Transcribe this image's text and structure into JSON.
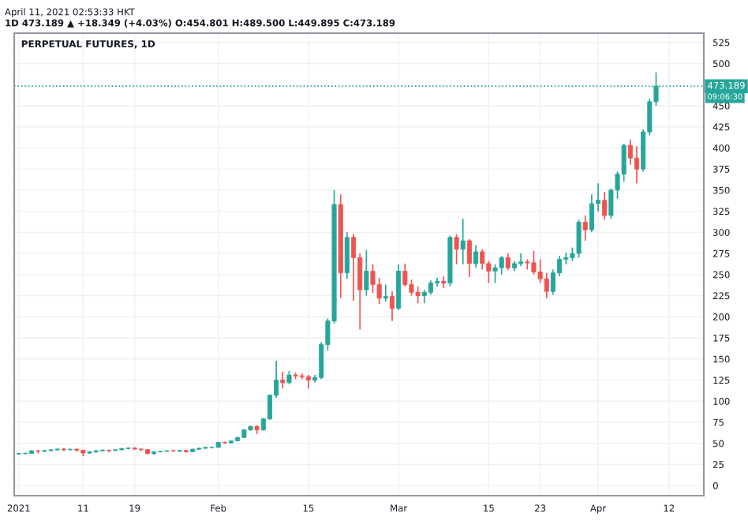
{
  "chart_data": {
    "type": "candlestick",
    "title": "PERPETUAL FUTURES, 1D",
    "annotations": [
      "April 11, 2021 02:53:33 HKT",
      "1D 473.189 ▲ +18.349 (+4.03%) O:454.801 H:489.500 L:449.895 C:473.189",
      "09:06:30"
    ],
    "x": [
      "2021-01-01",
      "2021-01-02",
      "2021-01-03",
      "2021-01-04",
      "2021-01-05",
      "2021-01-06",
      "2021-01-07",
      "2021-01-08",
      "2021-01-09",
      "2021-01-10",
      "2021-01-11",
      "2021-01-12",
      "2021-01-13",
      "2021-01-14",
      "2021-01-15",
      "2021-01-16",
      "2021-01-17",
      "2021-01-18",
      "2021-01-19",
      "2021-01-20",
      "2021-01-21",
      "2021-01-22",
      "2021-01-23",
      "2021-01-24",
      "2021-01-25",
      "2021-01-26",
      "2021-01-27",
      "2021-01-28",
      "2021-01-29",
      "2021-01-30",
      "2021-01-31",
      "2021-02-01",
      "2021-02-02",
      "2021-02-03",
      "2021-02-04",
      "2021-02-05",
      "2021-02-06",
      "2021-02-07",
      "2021-02-08",
      "2021-02-09",
      "2021-02-10",
      "2021-02-11",
      "2021-02-12",
      "2021-02-13",
      "2021-02-14",
      "2021-02-15",
      "2021-02-16",
      "2021-02-17",
      "2021-02-18",
      "2021-02-19",
      "2021-02-20",
      "2021-02-21",
      "2021-02-22",
      "2021-02-23",
      "2021-02-24",
      "2021-02-25",
      "2021-02-26",
      "2021-02-27",
      "2021-02-28",
      "2021-03-01",
      "2021-03-02",
      "2021-03-03",
      "2021-03-04",
      "2021-03-05",
      "2021-03-06",
      "2021-03-07",
      "2021-03-08",
      "2021-03-09",
      "2021-03-10",
      "2021-03-11",
      "2021-03-12",
      "2021-03-13",
      "2021-03-14",
      "2021-03-15",
      "2021-03-16",
      "2021-03-17",
      "2021-03-18",
      "2021-03-19",
      "2021-03-20",
      "2021-03-21",
      "2021-03-22",
      "2021-03-23",
      "2021-03-24",
      "2021-03-25",
      "2021-03-26",
      "2021-03-27",
      "2021-03-28",
      "2021-03-29",
      "2021-03-30",
      "2021-03-31",
      "2021-04-01",
      "2021-04-02",
      "2021-04-03",
      "2021-04-04",
      "2021-04-05",
      "2021-04-06",
      "2021-04-07",
      "2021-04-08",
      "2021-04-09",
      "2021-04-10"
    ],
    "ohlc": [
      [
        37.4,
        38.5,
        36.8,
        37.9
      ],
      [
        37.9,
        38.8,
        36.9,
        38.2
      ],
      [
        38.2,
        41.9,
        37.8,
        41.2
      ],
      [
        41.2,
        42.2,
        38.0,
        40.8
      ],
      [
        40.8,
        42.0,
        39.6,
        41.5
      ],
      [
        41.5,
        43.0,
        40.5,
        42.3
      ],
      [
        42.3,
        44.0,
        41.5,
        43.2
      ],
      [
        43.2,
        44.5,
        40.8,
        42.4
      ],
      [
        42.4,
        43.6,
        41.8,
        43.1
      ],
      [
        43.1,
        43.8,
        40.2,
        41.9
      ],
      [
        41.9,
        42.2,
        34.8,
        38.5
      ],
      [
        38.5,
        40.8,
        37.5,
        40.0
      ],
      [
        40.0,
        41.8,
        38.8,
        41.2
      ],
      [
        41.2,
        42.6,
        40.6,
        42.0
      ],
      [
        42.0,
        42.5,
        39.5,
        41.6
      ],
      [
        41.6,
        43.0,
        41.0,
        42.4
      ],
      [
        42.4,
        44.5,
        41.8,
        43.9
      ],
      [
        43.9,
        45.2,
        43.0,
        44.5
      ],
      [
        44.5,
        45.6,
        42.6,
        43.2
      ],
      [
        43.2,
        43.8,
        40.6,
        42.6
      ],
      [
        42.6,
        42.9,
        36.8,
        38.0
      ],
      [
        38.0,
        40.6,
        36.5,
        40.0
      ],
      [
        40.0,
        41.0,
        39.2,
        40.6
      ],
      [
        40.6,
        41.8,
        40.2,
        41.3
      ],
      [
        41.3,
        42.4,
        40.4,
        41.0
      ],
      [
        41.0,
        42.0,
        39.8,
        41.6
      ],
      [
        41.6,
        41.9,
        39.0,
        40.1
      ],
      [
        40.1,
        43.6,
        39.6,
        43.1
      ],
      [
        43.1,
        45.0,
        42.4,
        44.2
      ],
      [
        44.2,
        45.8,
        43.6,
        45.2
      ],
      [
        45.2,
        45.9,
        44.0,
        45.3
      ],
      [
        45.3,
        51.8,
        45.0,
        51.1
      ],
      [
        51.1,
        52.0,
        49.6,
        50.6
      ],
      [
        50.6,
        53.4,
        50.2,
        53.0
      ],
      [
        53.0,
        57.8,
        52.4,
        57.0
      ],
      [
        57.0,
        66.8,
        56.4,
        66.0
      ],
      [
        66.0,
        71.0,
        64.8,
        70.0
      ],
      [
        70.0,
        71.5,
        61.0,
        66.0
      ],
      [
        66.0,
        80.0,
        65.0,
        79.0
      ],
      [
        79.0,
        108,
        78.0,
        107
      ],
      [
        107,
        148,
        104,
        125
      ],
      [
        125,
        135,
        115,
        122
      ],
      [
        122,
        136,
        120,
        131
      ],
      [
        131,
        134,
        126,
        130
      ],
      [
        130,
        133,
        126,
        129
      ],
      [
        129,
        131,
        115,
        125
      ],
      [
        125,
        131,
        122,
        128
      ],
      [
        128,
        170,
        126,
        167
      ],
      [
        167,
        198,
        160,
        195
      ],
      [
        195,
        350,
        192,
        333
      ],
      [
        333,
        345,
        222,
        252
      ],
      [
        252,
        300,
        245,
        294
      ],
      [
        294,
        298,
        219,
        270
      ],
      [
        270,
        275,
        185,
        232
      ],
      [
        232,
        279,
        225,
        254
      ],
      [
        254,
        262,
        228,
        238
      ],
      [
        238,
        246,
        215,
        222
      ],
      [
        222,
        238,
        218,
        224
      ],
      [
        224,
        230,
        195,
        210
      ],
      [
        210,
        262,
        208,
        254
      ],
      [
        254,
        263,
        236,
        238
      ],
      [
        238,
        244,
        225,
        229
      ],
      [
        229,
        236,
        216,
        225
      ],
      [
        225,
        232,
        216,
        229
      ],
      [
        229,
        243,
        226,
        240
      ],
      [
        240,
        246,
        236,
        242
      ],
      [
        242,
        248,
        234,
        240
      ],
      [
        240,
        296,
        236,
        294
      ],
      [
        294,
        298,
        262,
        280
      ],
      [
        280,
        316,
        262,
        290
      ],
      [
        290,
        292,
        247,
        263
      ],
      [
        263,
        285,
        258,
        277
      ],
      [
        277,
        280,
        256,
        263
      ],
      [
        263,
        266,
        240,
        254
      ],
      [
        254,
        262,
        240,
        258
      ],
      [
        258,
        272,
        250,
        270
      ],
      [
        270,
        275,
        255,
        258
      ],
      [
        258,
        266,
        254,
        263
      ],
      [
        263,
        275,
        260,
        265
      ],
      [
        265,
        268,
        256,
        264
      ],
      [
        264,
        278,
        250,
        253
      ],
      [
        253,
        268,
        240,
        245
      ],
      [
        245,
        252,
        222,
        230
      ],
      [
        230,
        256,
        226,
        252
      ],
      [
        252,
        272,
        248,
        268
      ],
      [
        268,
        276,
        262,
        270
      ],
      [
        270,
        282,
        266,
        275
      ],
      [
        275,
        315,
        270,
        312
      ],
      [
        312,
        320,
        290,
        303
      ],
      [
        303,
        345,
        300,
        334
      ],
      [
        334,
        358,
        325,
        338
      ],
      [
        338,
        348,
        315,
        320
      ],
      [
        320,
        352,
        316,
        350
      ],
      [
        350,
        372,
        340,
        369
      ],
      [
        369,
        405,
        360,
        403
      ],
      [
        403,
        410,
        380,
        388
      ],
      [
        388,
        402,
        358,
        375
      ],
      [
        375,
        422,
        372,
        419
      ],
      [
        419,
        458,
        415,
        454.801
      ],
      [
        454.801,
        489.5,
        449.895,
        473.189
      ]
    ],
    "colors": [
      "#26a69a",
      "#26a69a",
      "#26a69a",
      "#ef5350",
      "#26a69a",
      "#26a69a",
      "#26a69a",
      "#ef5350",
      "#26a69a",
      "#ef5350",
      "#ef5350",
      "#26a69a",
      "#26a69a",
      "#26a69a",
      "#ef5350",
      "#26a69a",
      "#26a69a",
      "#26a69a",
      "#ef5350",
      "#ef5350",
      "#ef5350",
      "#26a69a",
      "#26a69a",
      "#26a69a",
      "#ef5350",
      "#26a69a",
      "#ef5350",
      "#26a69a",
      "#26a69a",
      "#26a69a",
      "#26a69a",
      "#26a69a",
      "#ef5350",
      "#26a69a",
      "#26a69a",
      "#26a69a",
      "#26a69a",
      "#ef5350",
      "#26a69a",
      "#26a69a",
      "#26a69a",
      "#ef5350",
      "#26a69a",
      "#ef5350",
      "#ef5350",
      "#ef5350",
      "#26a69a",
      "#26a69a",
      "#26a69a",
      "#26a69a",
      "#ef5350",
      "#26a69a",
      "#ef5350",
      "#ef5350",
      "#26a69a",
      "#ef5350",
      "#ef5350",
      "#26a69a",
      "#ef5350",
      "#26a69a",
      "#ef5350",
      "#ef5350",
      "#ef5350",
      "#26a69a",
      "#26a69a",
      "#26a69a",
      "#ef5350",
      "#26a69a",
      "#ef5350",
      "#26a69a",
      "#ef5350",
      "#26a69a",
      "#ef5350",
      "#ef5350",
      "#26a69a",
      "#26a69a",
      "#ef5350",
      "#26a69a",
      "#26a69a",
      "#ef5350",
      "#ef5350",
      "#ef5350",
      "#ef5350",
      "#26a69a",
      "#26a69a",
      "#26a69a",
      "#26a69a",
      "#26a69a",
      "#ef5350",
      "#26a69a",
      "#26a69a",
      "#ef5350",
      "#26a69a",
      "#26a69a",
      "#26a69a",
      "#ef5350",
      "#ef5350",
      "#26a69a",
      "#26a69a",
      "#26a69a"
    ],
    "xlim": [
      "2020-12-31T07:00",
      "2021-04-17T10:00"
    ],
    "xticks": [
      {
        "value": "2021-01-01",
        "label": "2021"
      },
      {
        "value": "2021-01-11",
        "label": "11"
      },
      {
        "value": "2021-01-19",
        "label": "19"
      },
      {
        "value": "2021-02-01",
        "label": "Feb"
      },
      {
        "value": "2021-02-15",
        "label": "15"
      },
      {
        "value": "2021-03-01",
        "label": "Mar"
      },
      {
        "value": "2021-03-15",
        "label": "15"
      },
      {
        "value": "2021-03-23",
        "label": "23"
      },
      {
        "value": "2021-04-01",
        "label": "Apr"
      },
      {
        "value": "2021-04-12",
        "label": "12"
      }
    ],
    "ylim": [
      -12,
      536
    ],
    "yticks": [
      0,
      25,
      50,
      75,
      100,
      125,
      150,
      175,
      200,
      225,
      250,
      275,
      300,
      325,
      350,
      375,
      400,
      425,
      450,
      500,
      525
    ],
    "ref_lines": [
      {
        "axis": "y",
        "value": 473.189,
        "label": "473.189",
        "color": "#26a69a",
        "line_style": "dotted"
      }
    ],
    "grid": true
  }
}
